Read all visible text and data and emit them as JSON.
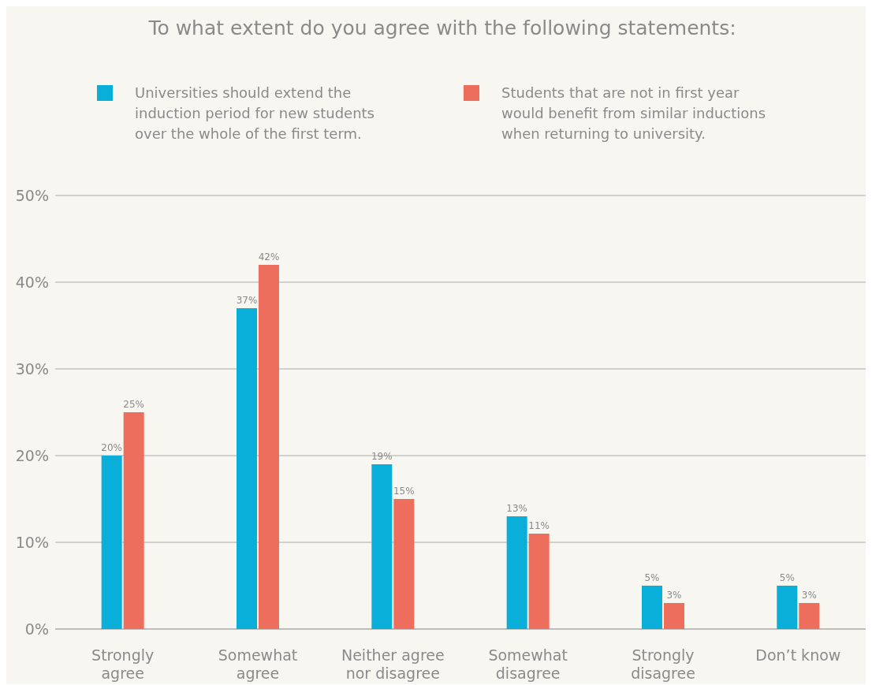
{
  "chart_data": {
    "type": "bar",
    "title": "To what extent do you agree with the following statements:",
    "categories": [
      "Strongly agree",
      "Somewhat agree",
      "Neither agree nor disagree",
      "Somewhat disagree",
      "Strongly disagree",
      "Don’t know"
    ],
    "series": [
      {
        "name": "Universities should extend the induction period for new students over the whole of the first term.",
        "color": "#0aafd9",
        "values": [
          20,
          37,
          19,
          13,
          5,
          5
        ],
        "value_labels": [
          "20%",
          "37%",
          "19%",
          "13%",
          "5%",
          "5%"
        ]
      },
      {
        "name": "Students that are not in first year would benefit from similar inductions when returning to university.",
        "color": "#ed6e5c",
        "values": [
          25,
          42,
          15,
          11,
          3,
          3
        ],
        "value_labels": [
          "25%",
          "42%",
          "15%",
          "11%",
          "3%",
          "3%"
        ]
      }
    ],
    "ylim": [
      0,
      50
    ],
    "yticks": [
      {
        "value": 0,
        "label": "0%"
      },
      {
        "value": 10,
        "label": "10%"
      },
      {
        "value": 20,
        "label": "20%"
      },
      {
        "value": 30,
        "label": "30%"
      },
      {
        "value": 40,
        "label": "40%"
      },
      {
        "value": 50,
        "label": "50%"
      }
    ],
    "grid": "y",
    "legend": "top"
  }
}
